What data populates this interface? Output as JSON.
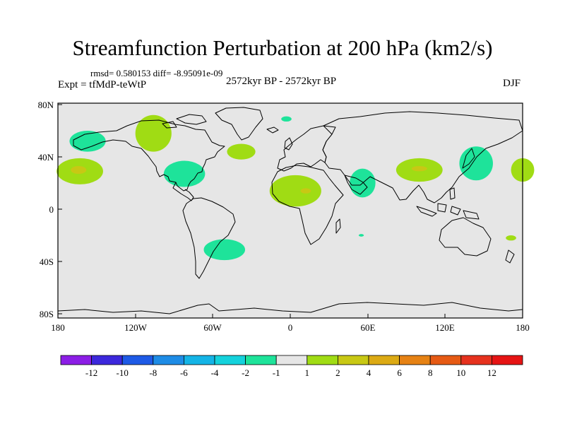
{
  "title": "Streamfunction Perturbation at 200 hPa (km2/s)",
  "stats": "rmsd= 0.580153 diff= -8.95091e-09",
  "experiment": "Expt = tfMdP-teWtP",
  "period": "2572kyr BP - 2572kyr BP",
  "season": "DJF",
  "colors": {
    "ocean": "#e6e6e6",
    "coast": "#000000",
    "neg1": "#1ee39a",
    "pos1": "#a0dc14",
    "pos2": "#c8c814"
  },
  "axes": {
    "lat_labels": [
      "80N",
      "40N",
      "0",
      "40S",
      "80S"
    ],
    "lon_labels": [
      "180",
      "120W",
      "60W",
      "0",
      "60E",
      "120E",
      "180"
    ]
  },
  "colorbar": {
    "labels": [
      "-12",
      "-10",
      "-8",
      "-6",
      "-4",
      "-2",
      "-1",
      "1",
      "2",
      "4",
      "6",
      "8",
      "10",
      "12"
    ],
    "colors": [
      "#8c1ee6",
      "#3c28dc",
      "#1e5ae6",
      "#1e8ce6",
      "#14b4e6",
      "#14d2dc",
      "#1ee39a",
      "#e6e6e6",
      "#a0dc14",
      "#c8c814",
      "#dcaa14",
      "#e68214",
      "#e65a14",
      "#e6321e",
      "#e61414"
    ]
  },
  "anomalies": [
    {
      "name": "north-pacific-west-negative",
      "sign": "negative",
      "lon": -157,
      "lat": 52,
      "rlon": 14,
      "rlat": 8
    },
    {
      "name": "central-pacific-positive",
      "sign": "positive",
      "lon": -163,
      "lat": 29,
      "rlon": 18,
      "rlat": 10
    },
    {
      "name": "north-america-positive",
      "sign": "positive",
      "lon": -106,
      "lat": 58,
      "rlon": 14,
      "rlat": 14
    },
    {
      "name": "southeast-us-negative",
      "sign": "negative",
      "lon": -82,
      "lat": 27,
      "rlon": 16,
      "rlat": 10
    },
    {
      "name": "atlantic-positive",
      "sign": "positive",
      "lon": -38,
      "lat": 44,
      "rlon": 11,
      "rlat": 6
    },
    {
      "name": "arctic-small-negative",
      "sign": "negative",
      "lon": -3,
      "lat": 69,
      "rlon": 4,
      "rlat": 2
    },
    {
      "name": "africa-positive",
      "sign": "positive",
      "lon": 4,
      "lat": 14,
      "rlon": 20,
      "rlat": 12
    },
    {
      "name": "red-sea-negative",
      "sign": "negative",
      "lon": 56,
      "lat": 20,
      "rlon": 10,
      "rlat": 11
    },
    {
      "name": "south-asia-positive",
      "sign": "positive",
      "lon": 100,
      "lat": 30,
      "rlon": 18,
      "rlat": 9
    },
    {
      "name": "west-pacific-negative",
      "sign": "negative",
      "lon": 144,
      "lat": 35,
      "rlon": 13,
      "rlat": 13
    },
    {
      "name": "far-east-positive",
      "sign": "positive",
      "lon": 180,
      "lat": 30,
      "rlon": 9,
      "rlat": 9
    },
    {
      "name": "south-america-negative",
      "sign": "negative",
      "lon": -51,
      "lat": -31,
      "rlon": 16,
      "rlat": 8
    },
    {
      "name": "madagascar-small-negative",
      "sign": "negative",
      "lon": 55,
      "lat": -20,
      "rlon": 2,
      "rlat": 1
    },
    {
      "name": "south-pacific-small-positive",
      "sign": "positive",
      "lon": 171,
      "lat": -22,
      "rlon": 4,
      "rlat": 2
    }
  ],
  "anomaly_cores": [
    {
      "name": "central-pacific-core",
      "lon": -164,
      "lat": 30,
      "rlon": 6,
      "rlat": 3
    },
    {
      "name": "africa-core",
      "lon": 12,
      "lat": 14,
      "rlon": 4,
      "rlat": 2
    },
    {
      "name": "south-asia-core",
      "lon": 100,
      "lat": 31,
      "rlon": 6,
      "rlat": 2
    }
  ]
}
